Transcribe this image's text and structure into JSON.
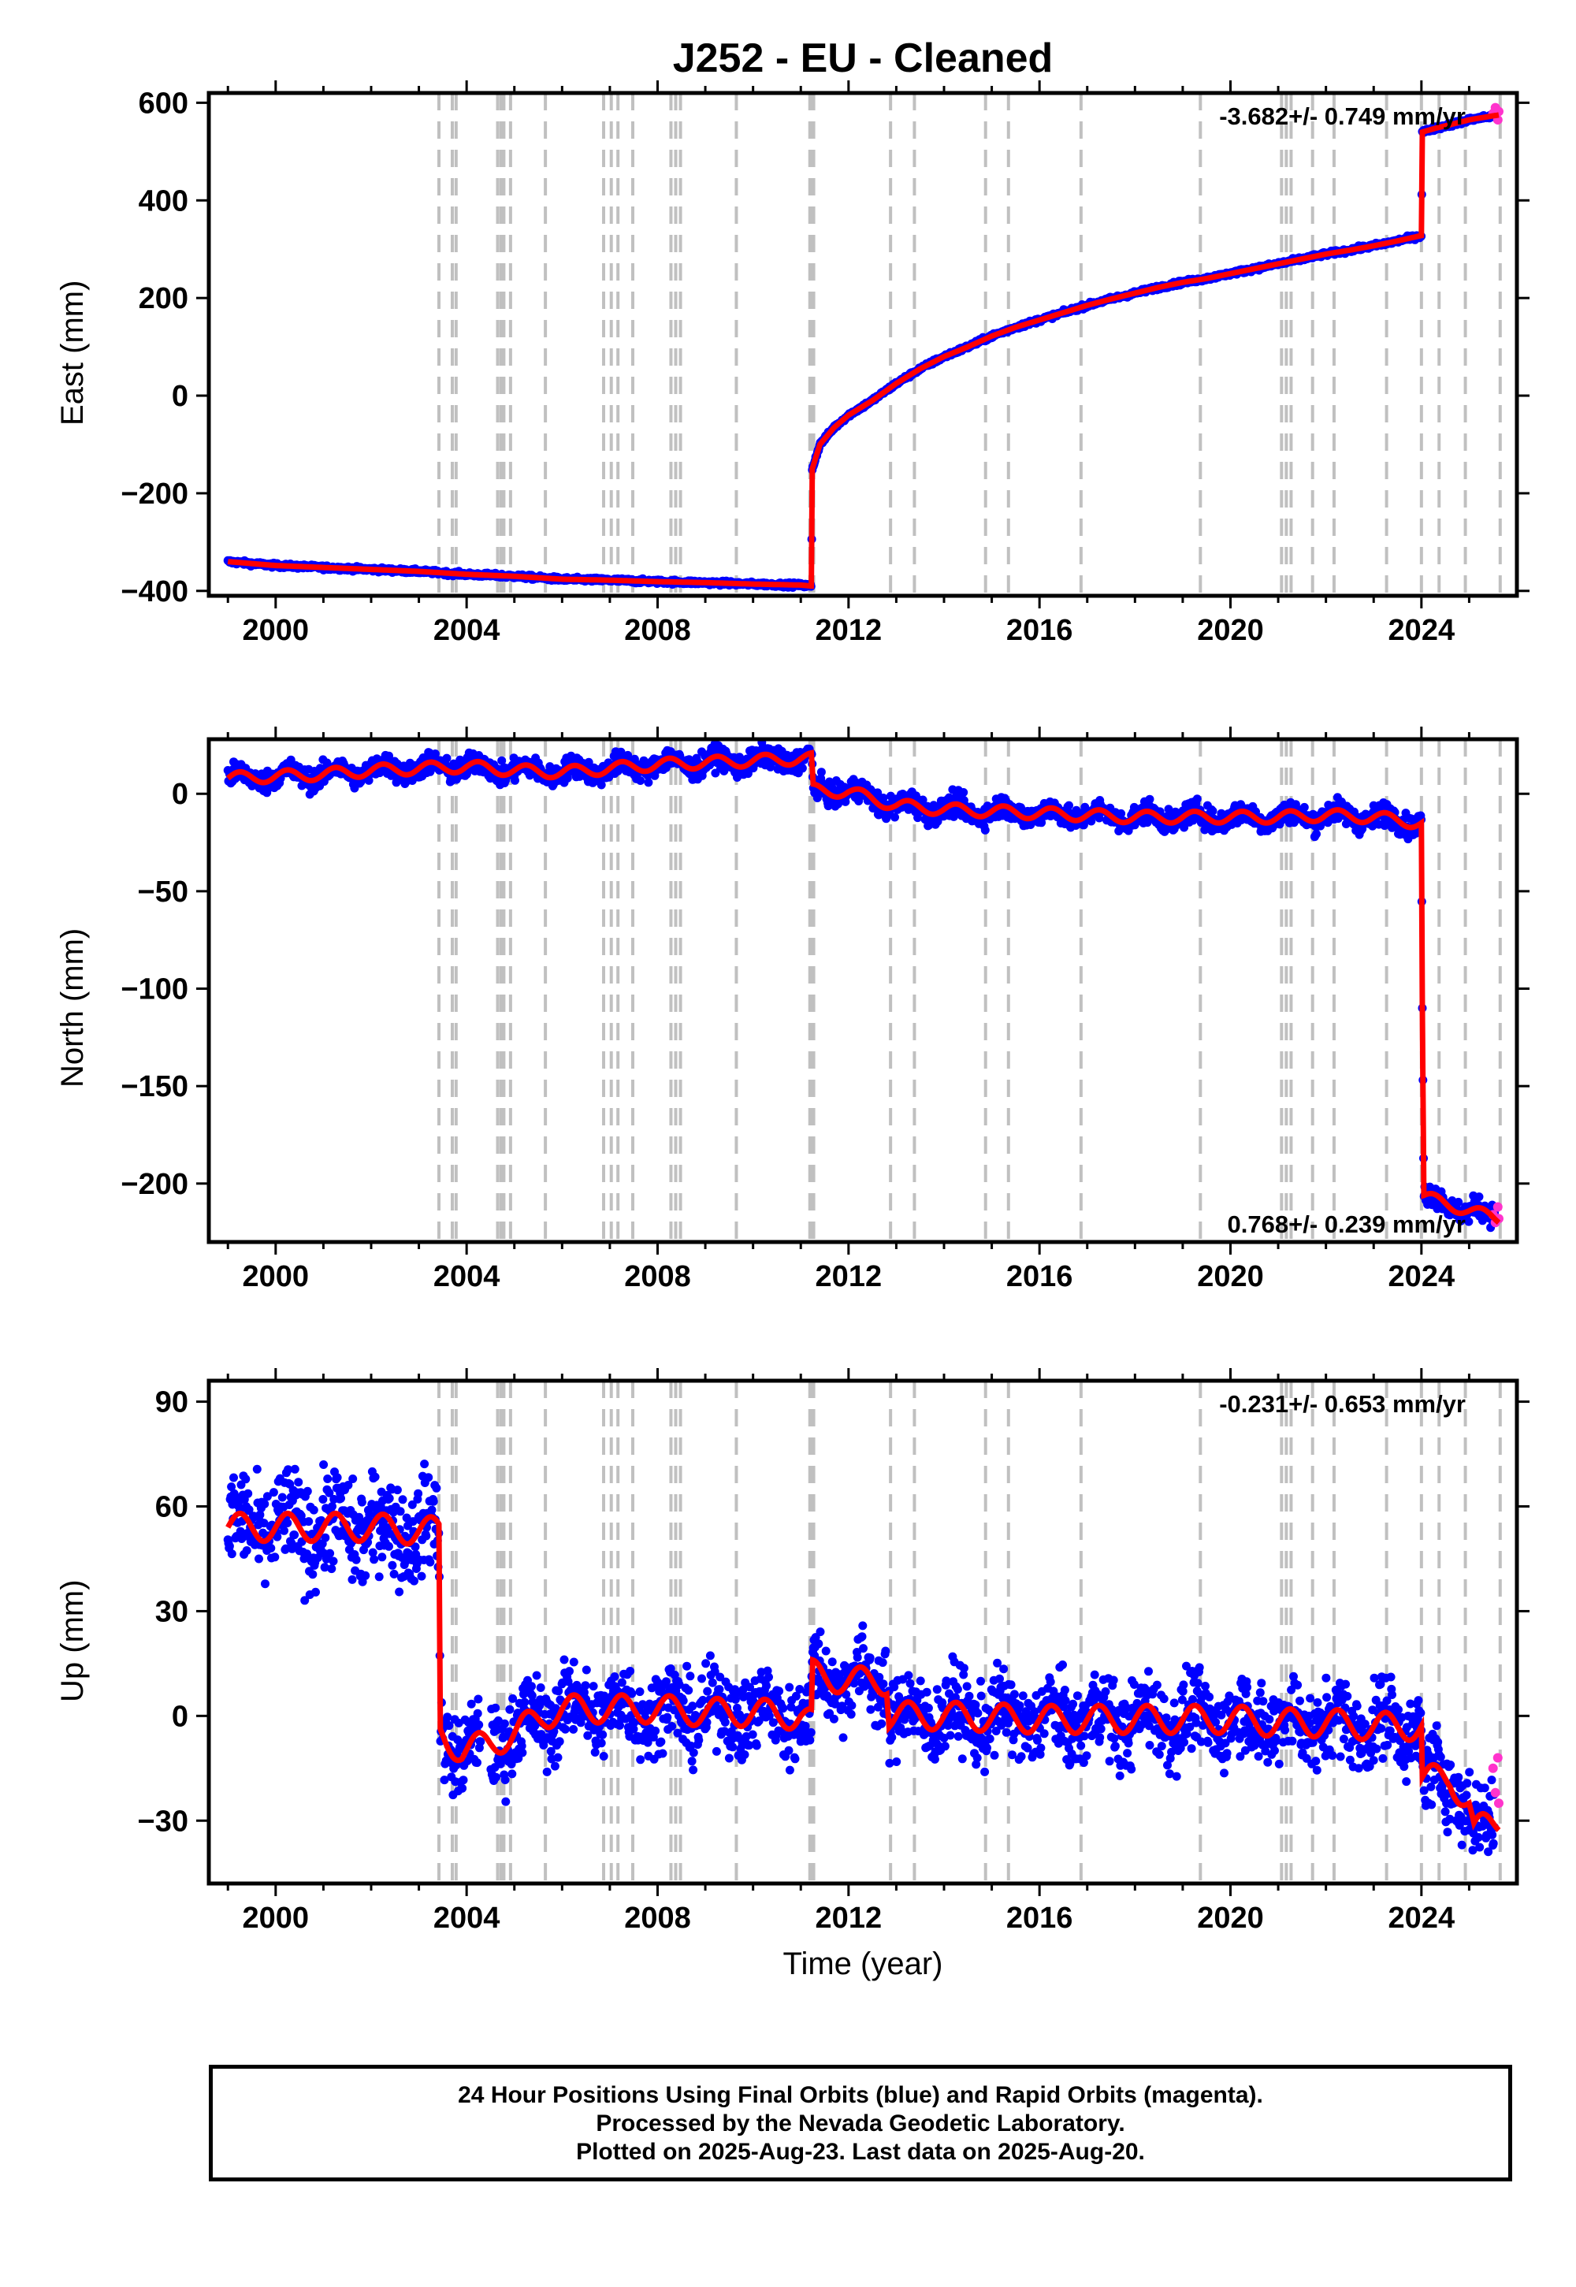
{
  "title": "J252  - EU - Cleaned",
  "xlabel": "Time (year)",
  "footer": [
    "24 Hour Positions Using Final Orbits (blue) and Rapid Orbits (magenta).",
    "Processed by the Nevada Geodetic Laboratory.",
    "Plotted on 2025-Aug-23. Last data on 2025-Aug-20."
  ],
  "colors": {
    "final": "#0000ff",
    "rapid": "#ff33cc",
    "model": "#ff0000",
    "steps": "#c0c0c0"
  },
  "chart_data": [
    {
      "type": "scatter",
      "name": "east",
      "ylabel": "East (mm)",
      "rate": "-3.682+/- 0.749 mm/yr",
      "rate_position": "top-right",
      "xlim": [
        1998.6,
        2026.0
      ],
      "ylim": [
        -410,
        620
      ],
      "xticks": [
        2000,
        2004,
        2008,
        2012,
        2016,
        2020,
        2024
      ],
      "yticks": [
        -400,
        -200,
        0,
        200,
        400,
        600
      ],
      "ytick_labels": [
        "−400",
        "−200",
        "0",
        "200",
        "400",
        "600"
      ],
      "trend": [
        [
          1999.0,
          -340
        ],
        [
          2000.0,
          -348
        ],
        [
          2001.0,
          -352
        ],
        [
          2002.0,
          -356
        ],
        [
          2003.0,
          -360
        ],
        [
          2004.0,
          -366
        ],
        [
          2005.0,
          -370
        ],
        [
          2006.0,
          -376
        ],
        [
          2007.0,
          -378
        ],
        [
          2008.0,
          -381
        ],
        [
          2009.0,
          -383
        ],
        [
          2010.0,
          -386
        ],
        [
          2011.0,
          -388
        ],
        [
          2011.22,
          -390
        ],
        [
          2011.24,
          -150
        ],
        [
          2011.4,
          -100
        ],
        [
          2011.7,
          -65
        ],
        [
          2012.0,
          -40
        ],
        [
          2012.5,
          -10
        ],
        [
          2013.0,
          25
        ],
        [
          2013.5,
          55
        ],
        [
          2014.0,
          80
        ],
        [
          2014.5,
          100
        ],
        [
          2015.0,
          122
        ],
        [
          2015.5,
          140
        ],
        [
          2016.0,
          155
        ],
        [
          2016.5,
          170
        ],
        [
          2017.0,
          185
        ],
        [
          2017.5,
          198
        ],
        [
          2018.0,
          210
        ],
        [
          2018.5,
          222
        ],
        [
          2019.0,
          232
        ],
        [
          2019.5,
          240
        ],
        [
          2020.0,
          250
        ],
        [
          2020.5,
          260
        ],
        [
          2021.0,
          270
        ],
        [
          2021.5,
          280
        ],
        [
          2022.0,
          290
        ],
        [
          2022.5,
          298
        ],
        [
          2023.0,
          307
        ],
        [
          2023.5,
          317
        ],
        [
          2024.0,
          328
        ],
        [
          2024.02,
          540
        ],
        [
          2024.3,
          548
        ],
        [
          2024.6,
          555
        ],
        [
          2025.0,
          565
        ],
        [
          2025.3,
          570
        ],
        [
          2025.62,
          575
        ]
      ],
      "noise": 3,
      "rapid": [
        [
          2025.5,
          578
        ],
        [
          2025.55,
          590
        ],
        [
          2025.6,
          565
        ],
        [
          2025.62,
          582
        ]
      ]
    },
    {
      "type": "scatter",
      "name": "north",
      "ylabel": "North (mm)",
      "rate": "0.768+/- 0.239 mm/yr",
      "rate_position": "bottom-right",
      "xlim": [
        1998.6,
        2026.0
      ],
      "ylim": [
        -230,
        28
      ],
      "xticks": [
        2000,
        2004,
        2008,
        2012,
        2016,
        2020,
        2024
      ],
      "yticks": [
        -200,
        -150,
        -100,
        -50,
        0
      ],
      "ytick_labels": [
        "−200",
        "−150",
        "−100",
        "−50",
        "0"
      ],
      "trend": [
        [
          1999.0,
          8
        ],
        [
          2000.0,
          9
        ],
        [
          2001.0,
          10
        ],
        [
          2002.0,
          12
        ],
        [
          2003.0,
          13
        ],
        [
          2004.0,
          14
        ],
        [
          2005.0,
          12
        ],
        [
          2006.0,
          11
        ],
        [
          2007.0,
          13
        ],
        [
          2008.0,
          15
        ],
        [
          2009.0,
          16
        ],
        [
          2010.0,
          17
        ],
        [
          2011.0,
          18
        ],
        [
          2011.22,
          18
        ],
        [
          2011.26,
          2
        ],
        [
          2012.0,
          1
        ],
        [
          2013.0,
          -6
        ],
        [
          2014.0,
          -8
        ],
        [
          2015.0,
          -9
        ],
        [
          2016.0,
          -10
        ],
        [
          2017.0,
          -11
        ],
        [
          2018.0,
          -12
        ],
        [
          2019.0,
          -12
        ],
        [
          2020.0,
          -12
        ],
        [
          2021.0,
          -12
        ],
        [
          2022.0,
          -11
        ],
        [
          2023.0,
          -12
        ],
        [
          2024.0,
          -15
        ],
        [
          2024.02,
          -110
        ],
        [
          2024.05,
          -207
        ],
        [
          2024.5,
          -210
        ],
        [
          2025.0,
          -214
        ],
        [
          2025.62,
          -218
        ]
      ],
      "noise": 4,
      "seasonal": 3,
      "rapid": [
        [
          2025.5,
          -216
        ],
        [
          2025.55,
          -220
        ],
        [
          2025.6,
          -212
        ],
        [
          2025.62,
          -218
        ]
      ]
    },
    {
      "type": "scatter",
      "name": "up",
      "ylabel": "Up (mm)",
      "rate": "-0.231+/- 0.653 mm/yr",
      "rate_position": "top-right",
      "xlim": [
        1998.6,
        2026.0
      ],
      "ylim": [
        -48,
        96
      ],
      "xticks": [
        2000,
        2004,
        2008,
        2012,
        2016,
        2020,
        2024
      ],
      "yticks": [
        -30,
        0,
        30,
        60,
        90
      ],
      "ytick_labels": [
        "−30",
        "0",
        "30",
        "60",
        "90"
      ],
      "trend": [
        [
          1999.0,
          54
        ],
        [
          2000.0,
          54
        ],
        [
          2001.0,
          54
        ],
        [
          2002.0,
          54
        ],
        [
          2003.0,
          53
        ],
        [
          2003.42,
          53
        ],
        [
          2003.45,
          -5
        ],
        [
          2003.9,
          -10
        ],
        [
          2004.5,
          -8
        ],
        [
          2005.0,
          -5
        ],
        [
          2005.6,
          0
        ],
        [
          2006.0,
          2
        ],
        [
          2007.0,
          2
        ],
        [
          2008.0,
          2
        ],
        [
          2009.0,
          1
        ],
        [
          2010.0,
          1
        ],
        [
          2011.0,
          0
        ],
        [
          2011.22,
          -2
        ],
        [
          2011.25,
          12
        ],
        [
          2012.0,
          10
        ],
        [
          2012.8,
          10
        ],
        [
          2012.85,
          0
        ],
        [
          2014.0,
          0
        ],
        [
          2016.0,
          -1
        ],
        [
          2018.0,
          -1
        ],
        [
          2020.0,
          -1
        ],
        [
          2021.0,
          -2
        ],
        [
          2022.0,
          -2
        ],
        [
          2023.0,
          -3
        ],
        [
          2024.0,
          -3
        ],
        [
          2024.02,
          -18
        ],
        [
          2024.6,
          -18
        ],
        [
          2025.0,
          -25
        ],
        [
          2025.1,
          -33
        ],
        [
          2025.62,
          -30
        ]
      ],
      "noise": 8,
      "noise_early": 10,
      "seasonal": 4,
      "rapid": [
        [
          2025.5,
          -15
        ],
        [
          2025.55,
          -22
        ],
        [
          2025.6,
          -12
        ],
        [
          2025.62,
          -25
        ]
      ]
    }
  ],
  "steps": [
    2003.42,
    2003.7,
    2003.78,
    2004.65,
    2004.72,
    2004.78,
    2004.92,
    2005.65,
    2006.87,
    2007.03,
    2007.17,
    2007.48,
    2008.28,
    2008.38,
    2008.48,
    2009.65,
    2011.19,
    2011.23,
    2011.27,
    2012.88,
    2013.38,
    2014.87,
    2015.35,
    2016.87,
    2019.37,
    2021.07,
    2021.17,
    2021.27,
    2021.72,
    2022.17,
    2023.27,
    2024.0,
    2024.37,
    2024.92,
    2025.65
  ]
}
